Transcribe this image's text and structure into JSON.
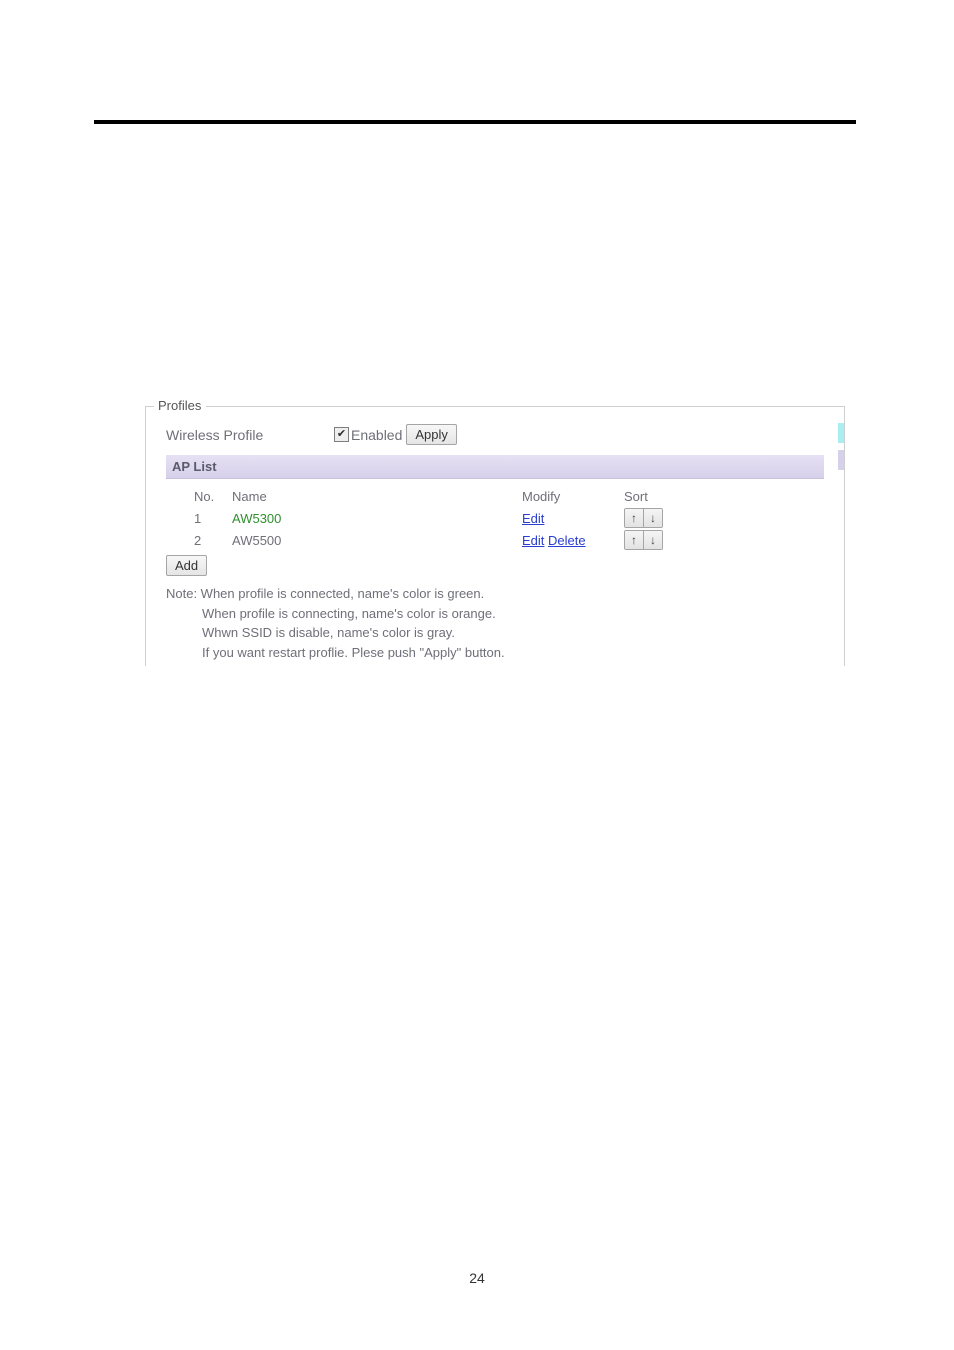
{
  "colors": {
    "page_bg": "#ffffff",
    "black_bar": "#000000",
    "border_gray": "#cfcfcf",
    "text_gray": "#6f6f79",
    "ap_header_top": "#e6e1f4",
    "ap_header_bottom": "#d6d0ea",
    "link_blue": "#2a3ed0",
    "name_green": "#2f8f2f",
    "accent_cyan": "#a9eef0",
    "accent_lav": "#d6d0ea"
  },
  "legend": "Profiles",
  "wireless_profile_label": "Wireless Profile",
  "enabled_checked": true,
  "enabled_label": "Enabled",
  "apply_label": "Apply",
  "ap_list_label": "AP List",
  "columns": {
    "no": "No.",
    "name": "Name",
    "modify": "Modify",
    "sort": "Sort"
  },
  "rows": [
    {
      "no": "1",
      "name": "AW5300",
      "name_color": "green",
      "modify_links": [
        "Edit"
      ],
      "sort_up": "↑",
      "sort_down": "↓"
    },
    {
      "no": "2",
      "name": "AW5500",
      "name_color": "gray",
      "modify_links": [
        "Edit",
        "Delete"
      ],
      "sort_up": "↑",
      "sort_down": "↓"
    }
  ],
  "add_label": "Add",
  "note_line1": "Note: When profile is connected, name's color is green.",
  "note_line2": "When profile is connecting, name's color is orange.",
  "note_line3": "Whwn SSID is disable, name's color is gray.",
  "note_line4": "If you want restart proflie. Plese push \"Apply\" button.",
  "page_number": "24",
  "checkmark": "✔"
}
